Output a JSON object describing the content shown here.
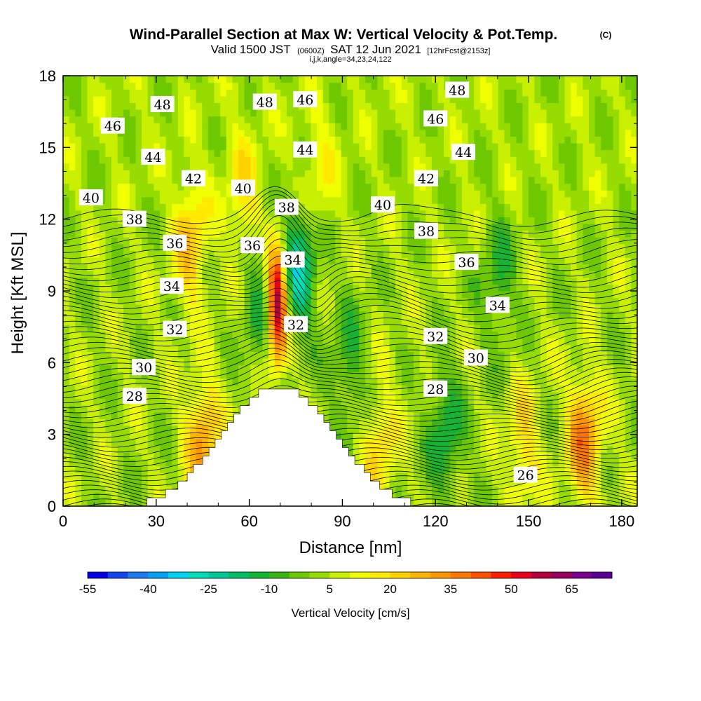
{
  "header": {
    "title": "Wind-Parallel Section at Max W: Vertical Velocity & Pot.Temp.",
    "title_mark": "(C)",
    "subtitle_pre": "Valid 1500 JST",
    "subtitle_z": "(0600Z)",
    "subtitle_main": "SAT 12 Jun 2021",
    "subtitle_fcst": "[12hrFcst@2153z]",
    "subtitle2": "i,j,k,angle=34,23,24,122"
  },
  "colorbar": {
    "title": "Vertical Velocity [cm/s]",
    "tick_labels": [
      "-55",
      "-40",
      "-25",
      "-10",
      "5",
      "20",
      "35",
      "50",
      "65"
    ],
    "levels": [
      -55,
      -50,
      -45,
      -40,
      -35,
      -30,
      -25,
      -20,
      -15,
      -10,
      -5,
      0,
      5,
      10,
      15,
      20,
      25,
      30,
      35,
      40,
      45,
      50,
      55,
      60,
      65,
      70
    ],
    "colors": [
      "#0000e6",
      "#1446f0",
      "#1e78f0",
      "#00a0f0",
      "#00d2f0",
      "#00dcb4",
      "#00c896",
      "#00be64",
      "#14b432",
      "#3cb414",
      "#6ec800",
      "#96dc00",
      "#c8f000",
      "#f0ff00",
      "#ffeb00",
      "#ffd200",
      "#ffb400",
      "#ff9600",
      "#ff7800",
      "#ff5000",
      "#ff1e00",
      "#e6001e",
      "#b4003c",
      "#96005a",
      "#78008c",
      "#5a0096"
    ]
  },
  "chart_data": {
    "type": "heatmap",
    "title": "Wind-Parallel Section at Max W: Vertical Velocity & Pot.Temp.",
    "xlabel": "Distance [nm]",
    "ylabel": "Height [Kft MSL]",
    "xlim": [
      0,
      185
    ],
    "ylim": [
      0,
      18
    ],
    "x_ticks": [
      0,
      30,
      60,
      90,
      120,
      150,
      180
    ],
    "x_tick_labels": [
      "0",
      "30",
      "60",
      "90",
      "120",
      "150",
      "180"
    ],
    "y_ticks": [
      0,
      3,
      6,
      9,
      12,
      15,
      18
    ],
    "y_tick_labels": [
      "0",
      "3",
      "6",
      "9",
      "12",
      "15",
      "18"
    ],
    "fill_variable": "Vertical Velocity [cm/s]",
    "contour_variable": "Potential Temperature (C)",
    "contour_values": [
      26,
      28,
      30,
      32,
      34,
      36,
      38,
      40,
      42,
      44,
      46,
      48
    ],
    "terrain_peak": {
      "x": 69,
      "height": 5.2
    },
    "velocity_features": [
      {
        "x": 69,
        "height": 8.5,
        "w": 65
      },
      {
        "x": 76,
        "height": 10.0,
        "w": -25
      },
      {
        "x": 63,
        "height": 8.5,
        "w": -10
      },
      {
        "x": 45,
        "height": 2.8,
        "w": 30
      },
      {
        "x": 168,
        "height": 2.8,
        "w": 35
      },
      {
        "x": 148,
        "height": 2.5,
        "w": 20
      },
      {
        "x": 41,
        "height": 11.0,
        "w": 25
      },
      {
        "x": 58,
        "height": 13.0,
        "w": 20
      },
      {
        "x": 82,
        "height": 14.0,
        "w": 15
      },
      {
        "x": 102,
        "height": 2.5,
        "w": 20
      },
      {
        "x": 92,
        "height": 6.0,
        "w": -10
      },
      {
        "x": 123,
        "height": 3.0,
        "w": -15
      },
      {
        "x": 140,
        "height": 9.5,
        "w": -10
      }
    ],
    "contour_labels": [
      {
        "text": "48",
        "x": 32,
        "y": 16.8
      },
      {
        "text": "48",
        "x": 65,
        "y": 16.9
      },
      {
        "text": "46",
        "x": 78,
        "y": 17.0
      },
      {
        "text": "48",
        "x": 127,
        "y": 17.4
      },
      {
        "text": "46",
        "x": 16,
        "y": 15.9
      },
      {
        "text": "46",
        "x": 120,
        "y": 16.2
      },
      {
        "text": "44",
        "x": 29,
        "y": 14.6
      },
      {
        "text": "44",
        "x": 78,
        "y": 14.9
      },
      {
        "text": "44",
        "x": 129,
        "y": 14.8
      },
      {
        "text": "42",
        "x": 42,
        "y": 13.7
      },
      {
        "text": "42",
        "x": 117,
        "y": 13.7
      },
      {
        "text": "40",
        "x": 9,
        "y": 12.9
      },
      {
        "text": "40",
        "x": 58,
        "y": 13.3
      },
      {
        "text": "40",
        "x": 103,
        "y": 12.6
      },
      {
        "text": "38",
        "x": 23,
        "y": 12.0
      },
      {
        "text": "38",
        "x": 72,
        "y": 12.5
      },
      {
        "text": "38",
        "x": 117,
        "y": 11.5
      },
      {
        "text": "36",
        "x": 36,
        "y": 11.0
      },
      {
        "text": "36",
        "x": 61,
        "y": 10.9
      },
      {
        "text": "36",
        "x": 130,
        "y": 10.2
      },
      {
        "text": "34",
        "x": 35,
        "y": 9.2
      },
      {
        "text": "34",
        "x": 74,
        "y": 10.3
      },
      {
        "text": "34",
        "x": 140,
        "y": 8.4
      },
      {
        "text": "32",
        "x": 36,
        "y": 7.4
      },
      {
        "text": "32",
        "x": 75,
        "y": 7.6
      },
      {
        "text": "32",
        "x": 120,
        "y": 7.1
      },
      {
        "text": "30",
        "x": 26,
        "y": 5.8
      },
      {
        "text": "30",
        "x": 133,
        "y": 6.2
      },
      {
        "text": "28",
        "x": 23,
        "y": 4.6
      },
      {
        "text": "28",
        "x": 120,
        "y": 4.9
      },
      {
        "text": "26",
        "x": 149,
        "y": 1.3
      }
    ]
  }
}
